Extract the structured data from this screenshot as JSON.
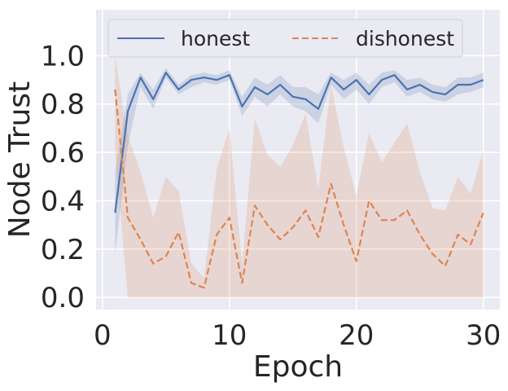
{
  "chart_data": {
    "type": "line",
    "xlabel": "Epoch",
    "ylabel": "Node Trust",
    "xlim": [
      -0.5,
      31.3
    ],
    "ylim": [
      -0.05,
      1.19
    ],
    "xticks": [
      0,
      10,
      20,
      30
    ],
    "xtick_labels": [
      "0",
      "10",
      "20",
      "30"
    ],
    "yticks": [
      0.0,
      0.2,
      0.4,
      0.6,
      0.8,
      1.0
    ],
    "ytick_labels": [
      "0.0",
      "0.2",
      "0.4",
      "0.6",
      "0.8",
      "1.0"
    ],
    "grid": true,
    "background": "#eaeaf2",
    "legend_position": "top",
    "x": [
      1,
      2,
      3,
      4,
      5,
      6,
      7,
      8,
      9,
      10,
      11,
      12,
      13,
      14,
      15,
      16,
      17,
      18,
      19,
      20,
      21,
      22,
      23,
      24,
      25,
      26,
      27,
      28,
      29,
      30
    ],
    "series": [
      {
        "name": "honest",
        "color": "#4c72b0",
        "line_style": "solid",
        "values": [
          0.35,
          0.77,
          0.91,
          0.82,
          0.93,
          0.86,
          0.9,
          0.91,
          0.9,
          0.92,
          0.79,
          0.87,
          0.84,
          0.88,
          0.83,
          0.82,
          0.78,
          0.91,
          0.86,
          0.9,
          0.84,
          0.9,
          0.92,
          0.86,
          0.88,
          0.85,
          0.84,
          0.88,
          0.88,
          0.9
        ],
        "lower": [
          0.18,
          0.63,
          0.87,
          0.78,
          0.91,
          0.84,
          0.87,
          0.89,
          0.88,
          0.9,
          0.75,
          0.83,
          0.79,
          0.84,
          0.79,
          0.77,
          0.72,
          0.88,
          0.82,
          0.86,
          0.8,
          0.87,
          0.89,
          0.83,
          0.85,
          0.82,
          0.81,
          0.84,
          0.85,
          0.87
        ],
        "upper": [
          0.52,
          0.84,
          0.93,
          0.86,
          0.95,
          0.88,
          0.92,
          0.93,
          0.92,
          0.94,
          0.83,
          0.91,
          0.88,
          0.92,
          0.87,
          0.87,
          0.84,
          0.93,
          0.9,
          0.93,
          0.88,
          0.93,
          0.94,
          0.9,
          0.91,
          0.88,
          0.87,
          0.91,
          0.91,
          0.93
        ]
      },
      {
        "name": "dishonest",
        "color": "#dd8452",
        "line_style": "dashed",
        "values": [
          0.86,
          0.33,
          0.24,
          0.14,
          0.17,
          0.27,
          0.06,
          0.04,
          0.26,
          0.33,
          0.06,
          0.38,
          0.3,
          0.24,
          0.29,
          0.36,
          0.25,
          0.47,
          0.3,
          0.15,
          0.4,
          0.32,
          0.32,
          0.36,
          0.26,
          0.18,
          0.13,
          0.26,
          0.22,
          0.35
        ],
        "lower": [
          0.6,
          0.0,
          0.0,
          0.0,
          0.0,
          0.0,
          0.0,
          0.0,
          0.0,
          0.0,
          0.0,
          0.0,
          0.0,
          0.0,
          0.0,
          0.0,
          0.0,
          0.0,
          0.0,
          0.0,
          0.0,
          0.0,
          0.0,
          0.0,
          0.0,
          0.0,
          0.0,
          0.0,
          0.0,
          0.0
        ],
        "upper": [
          1.0,
          0.67,
          0.52,
          0.33,
          0.5,
          0.44,
          0.14,
          0.08,
          0.53,
          0.7,
          0.14,
          0.74,
          0.59,
          0.54,
          0.63,
          0.76,
          0.45,
          0.88,
          0.62,
          0.42,
          0.68,
          0.56,
          0.64,
          0.72,
          0.52,
          0.37,
          0.36,
          0.5,
          0.43,
          0.61
        ]
      }
    ]
  }
}
